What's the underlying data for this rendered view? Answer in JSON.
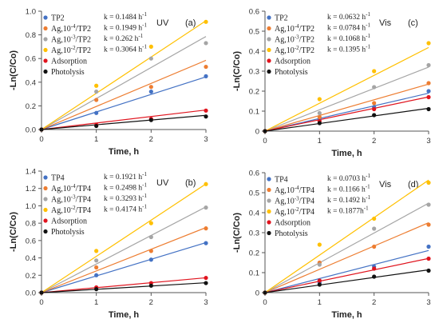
{
  "figure": {
    "y_axis_title": "-Ln(C/Co)",
    "x_axis_title": "Time, h"
  },
  "chart_data": [
    {
      "type": "scatter",
      "panel": "(a)",
      "light": "UV",
      "xlabel": "Time, h",
      "ylabel": "-Ln(C/Co)",
      "xlim": [
        0,
        3
      ],
      "ylim": [
        0,
        1.0
      ],
      "xticks": [
        "0",
        "1",
        "2",
        "3"
      ],
      "yticks": [
        "0.0",
        "0.2",
        "0.4",
        "0.6",
        "0.8",
        "1.0"
      ],
      "ytick_values": [
        0,
        0.2,
        0.4,
        0.6,
        0.8,
        1.0
      ],
      "legend_position": "top-left",
      "series": [
        {
          "name": "TP2",
          "name_base": "TP2",
          "name_sup": "",
          "name_tail": "",
          "k": "k = 0.1484 h",
          "k_sup": "-1",
          "slope": 0.1484,
          "color": "#4472c4",
          "x": [
            0,
            1,
            2,
            3
          ],
          "y": [
            0,
            0.14,
            0.32,
            0.45
          ]
        },
        {
          "name": "Ag,10-4/TP2",
          "name_base": "Ag,10",
          "name_sup": "-4",
          "name_tail": "/TP2",
          "k": "k = 0.1949 h",
          "k_sup": "-1",
          "slope": 0.1949,
          "color": "#ed7d31",
          "x": [
            0,
            1,
            2,
            3
          ],
          "y": [
            0,
            0.25,
            0.36,
            0.53
          ]
        },
        {
          "name": "Ag,10-3/TP2",
          "name_base": "Ag,10",
          "name_sup": "-3",
          "name_tail": "/TP2",
          "k": "k = 0.262 h",
          "k_sup": "-1",
          "slope": 0.262,
          "color": "#a5a5a5",
          "x": [
            0,
            1,
            2,
            3
          ],
          "y": [
            0,
            0.32,
            0.6,
            0.73
          ]
        },
        {
          "name": "Ag,10-2/TP2",
          "name_base": "Ag,10",
          "name_sup": "-2",
          "name_tail": "/TP2",
          "k": "k = 0.3064 h",
          "k_sup": "-1",
          "slope": 0.3064,
          "color": "#ffc000",
          "x": [
            0,
            1,
            2,
            3
          ],
          "y": [
            0,
            0.37,
            0.7,
            0.91
          ]
        },
        {
          "name": "Adsorption",
          "name_base": "Adsorption",
          "name_sup": "",
          "name_tail": "",
          "k": "",
          "k_sup": "",
          "slope": 0.055,
          "color": "#e0141e",
          "x": [
            0,
            1,
            2,
            3
          ],
          "y": [
            0,
            0.04,
            0.09,
            0.16
          ]
        },
        {
          "name": "Photolysis",
          "name_base": "Photolysis",
          "name_sup": "",
          "name_tail": "",
          "k": "",
          "k_sup": "",
          "slope": 0.04,
          "color": "#111111",
          "x": [
            0,
            1,
            2,
            3
          ],
          "y": [
            0,
            0.03,
            0.08,
            0.11
          ]
        }
      ]
    },
    {
      "type": "scatter",
      "panel": "(c)",
      "light": "Vis",
      "xlabel": "Time, h",
      "ylabel": "-Ln(C/Co)",
      "xlim": [
        0,
        3
      ],
      "ylim": [
        0,
        0.6
      ],
      "xticks": [
        "0",
        "1",
        "2",
        "3"
      ],
      "yticks": [
        "0",
        "0.1",
        "0.2",
        "0.3",
        "0.4",
        "0.5",
        "0.6"
      ],
      "ytick_values": [
        0,
        0.1,
        0.2,
        0.3,
        0.4,
        0.5,
        0.6
      ],
      "legend_position": "top-left",
      "series": [
        {
          "name": "TP2",
          "name_base": "TP2",
          "name_sup": "",
          "name_tail": "",
          "k": "k = 0.0632 h",
          "k_sup": "-1",
          "slope": 0.0632,
          "color": "#4472c4",
          "x": [
            0,
            1,
            2,
            3
          ],
          "y": [
            0,
            0.06,
            0.12,
            0.2
          ]
        },
        {
          "name": "Ag,10-4/TP2",
          "name_base": "Ag,10",
          "name_sup": "-4",
          "name_tail": "/TP2",
          "k": "k = 0.0784 h",
          "k_sup": "-1",
          "slope": 0.0784,
          "color": "#ed7d31",
          "x": [
            0,
            1,
            2,
            3
          ],
          "y": [
            0,
            0.07,
            0.14,
            0.24
          ]
        },
        {
          "name": "Ag,10-3/TP2",
          "name_base": "Ag,10",
          "name_sup": "-3",
          "name_tail": "/TP2",
          "k": "k = 0.1068 h",
          "k_sup": "-1",
          "slope": 0.1068,
          "color": "#a5a5a5",
          "x": [
            0,
            1,
            2,
            3
          ],
          "y": [
            0,
            0.09,
            0.22,
            0.33
          ]
        },
        {
          "name": "Ag,10-2/TP2",
          "name_base": "Ag,10",
          "name_sup": "-2",
          "name_tail": "/TP2",
          "k": "k = 0.1395 h",
          "k_sup": "-1",
          "slope": 0.1395,
          "color": "#ffc000",
          "x": [
            0,
            1,
            2,
            3
          ],
          "y": [
            0,
            0.16,
            0.3,
            0.44
          ]
        },
        {
          "name": "Adsorption",
          "name_base": "Adsorption",
          "name_sup": "",
          "name_tail": "",
          "k": "",
          "k_sup": "",
          "slope": 0.057,
          "color": "#e0141e",
          "x": [
            0,
            1,
            2,
            3
          ],
          "y": [
            0,
            0.05,
            0.11,
            0.17
          ]
        },
        {
          "name": "Photolysis",
          "name_base": "Photolysis",
          "name_sup": "",
          "name_tail": "",
          "k": "",
          "k_sup": "",
          "slope": 0.038,
          "color": "#111111",
          "x": [
            0,
            1,
            2,
            3
          ],
          "y": [
            0,
            0.04,
            0.08,
            0.11
          ]
        }
      ]
    },
    {
      "type": "scatter",
      "panel": "(b)",
      "light": "UV",
      "xlabel": "Time, h",
      "ylabel": "-Ln(C/Co)",
      "xlim": [
        0,
        3
      ],
      "ylim": [
        0,
        1.4
      ],
      "xticks": [
        "0",
        "1",
        "2",
        "3"
      ],
      "yticks": [
        "0.0",
        "0.2",
        "0.4",
        "0.6",
        "0.8",
        "1.0",
        "1.2",
        "1.4"
      ],
      "ytick_values": [
        0,
        0.2,
        0.4,
        0.6,
        0.8,
        1.0,
        1.2,
        1.4
      ],
      "legend_position": "top-left",
      "series": [
        {
          "name": "TP4",
          "name_base": "TP4",
          "name_sup": "",
          "name_tail": "",
          "k": "k = 0.1921 h",
          "k_sup": "-1",
          "slope": 0.1921,
          "color": "#4472c4",
          "x": [
            0,
            1,
            2,
            3
          ],
          "y": [
            0,
            0.2,
            0.38,
            0.57
          ]
        },
        {
          "name": "Ag,10-4/TP4",
          "name_base": "Ag,10",
          "name_sup": "-4",
          "name_tail": "/TP4",
          "k": "k = 0.2498 h",
          "k_sup": "-1",
          "slope": 0.2498,
          "color": "#ed7d31",
          "x": [
            0,
            1,
            2,
            3
          ],
          "y": [
            0,
            0.29,
            0.48,
            0.74
          ]
        },
        {
          "name": "Ag,10-3/TP4",
          "name_base": "Ag,10",
          "name_sup": "-3",
          "name_tail": "/TP4",
          "k": "k = 0.3293 h",
          "k_sup": "-1",
          "slope": 0.3293,
          "color": "#a5a5a5",
          "x": [
            0,
            1,
            2,
            3
          ],
          "y": [
            0,
            0.37,
            0.64,
            0.98
          ]
        },
        {
          "name": "Ag,10-2/TP4",
          "name_base": "Ag,10",
          "name_sup": "-2",
          "name_tail": "/TP4",
          "k": "k = 0.4174 h",
          "k_sup": "-1",
          "slope": 0.4174,
          "color": "#ffc000",
          "x": [
            0,
            1,
            2,
            3
          ],
          "y": [
            0,
            0.48,
            0.8,
            1.25
          ]
        },
        {
          "name": "Adsorption",
          "name_base": "Adsorption",
          "name_sup": "",
          "name_tail": "",
          "k": "",
          "k_sup": "",
          "slope": 0.057,
          "color": "#e0141e",
          "x": [
            0,
            1,
            2,
            3
          ],
          "y": [
            0,
            0.06,
            0.11,
            0.17
          ]
        },
        {
          "name": "Photolysis",
          "name_base": "Photolysis",
          "name_sup": "",
          "name_tail": "",
          "k": "",
          "k_sup": "",
          "slope": 0.038,
          "color": "#111111",
          "x": [
            0,
            1,
            2,
            3
          ],
          "y": [
            0,
            0.04,
            0.08,
            0.11
          ]
        }
      ]
    },
    {
      "type": "scatter",
      "panel": "(d)",
      "light": "Vis",
      "xlabel": "Time, h",
      "ylabel": "-Ln(C/Co)",
      "xlim": [
        0,
        3
      ],
      "ylim": [
        0,
        0.6
      ],
      "xticks": [
        "0",
        "1",
        "2",
        "3"
      ],
      "yticks": [
        "0",
        "0.1",
        "0.2",
        "0.3",
        "0.4",
        "0.5",
        "0.6"
      ],
      "ytick_values": [
        0,
        0.1,
        0.2,
        0.3,
        0.4,
        0.5,
        0.6
      ],
      "legend_position": "top-left",
      "series": [
        {
          "name": "TP4",
          "name_base": "TP4",
          "name_sup": "",
          "name_tail": "",
          "k": "k = 0.0703 h",
          "k_sup": "-1",
          "slope": 0.0703,
          "color": "#4472c4",
          "x": [
            0,
            1,
            2,
            3
          ],
          "y": [
            0,
            0.05,
            0.13,
            0.23
          ]
        },
        {
          "name": "Ag,10-4/TP4",
          "name_base": "Ag,10",
          "name_sup": "-4",
          "name_tail": "/TP4",
          "k": "k = 0.1166 h",
          "k_sup": "-1",
          "slope": 0.1166,
          "color": "#ed7d31",
          "x": [
            0,
            1,
            2,
            3
          ],
          "y": [
            0,
            0.15,
            0.23,
            0.34
          ]
        },
        {
          "name": "Ag,10-3/TP4",
          "name_base": "Ag,10",
          "name_sup": "-3",
          "name_tail": "/TP4",
          "k": "k = 0.1492 h",
          "k_sup": "-1",
          "slope": 0.1492,
          "color": "#a5a5a5",
          "x": [
            0,
            1,
            2,
            3
          ],
          "y": [
            0,
            0.14,
            0.32,
            0.44
          ]
        },
        {
          "name": "Ag,10-2/TP4",
          "name_base": "Ag,10",
          "name_sup": "-2",
          "name_tail": "/TP4",
          "k": "k = 0.1877h",
          "k_sup": "-1",
          "slope": 0.1877,
          "color": "#ffc000",
          "x": [
            0,
            1,
            2,
            3
          ],
          "y": [
            0,
            0.24,
            0.37,
            0.55
          ]
        },
        {
          "name": "Adsorption",
          "name_base": "Adsorption",
          "name_sup": "",
          "name_tail": "",
          "k": "",
          "k_sup": "",
          "slope": 0.057,
          "color": "#e0141e",
          "x": [
            0,
            1,
            2,
            3
          ],
          "y": [
            0,
            0.06,
            0.12,
            0.17
          ]
        },
        {
          "name": "Photolysis",
          "name_base": "Photolysis",
          "name_sup": "",
          "name_tail": "",
          "k": "",
          "k_sup": "",
          "slope": 0.038,
          "color": "#111111",
          "x": [
            0,
            1,
            2,
            3
          ],
          "y": [
            0,
            0.04,
            0.08,
            0.11
          ]
        }
      ]
    }
  ]
}
